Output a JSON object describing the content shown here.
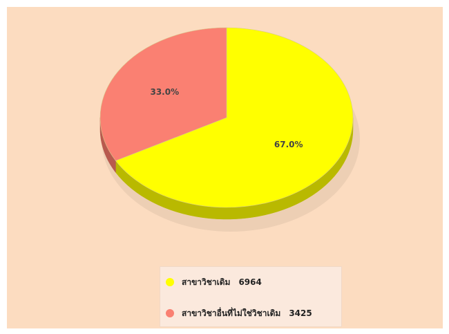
{
  "chart_data": {
    "type": "pie",
    "slices": [
      {
        "label": "สาขาวิชาเดิม",
        "value": 6964,
        "percent_label": "67.0%",
        "color": "#ffff00",
        "side_color": "#b9b900"
      },
      {
        "label": "สาขาวิชาอื่นที่ไม่ใช่วิชาเดิม",
        "value": 3425,
        "percent_label": "33.0%",
        "color": "#fa8072",
        "side_color": "#b85a4e"
      }
    ],
    "legend_position": "bottom-center",
    "panel_color": "#fcdcc0",
    "legend_background": "#fbe9dd"
  }
}
